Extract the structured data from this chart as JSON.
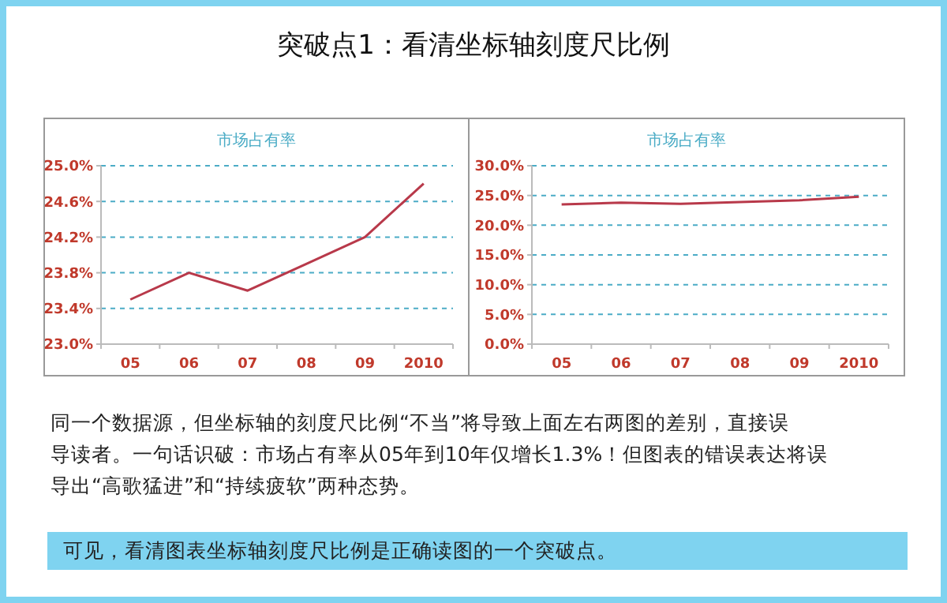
{
  "chart_data": [
    {
      "type": "line",
      "title": "市场占有率",
      "categories": [
        "05",
        "06",
        "07",
        "08",
        "09",
        "2010"
      ],
      "series": [
        {
          "color": "#b8394a",
          "values": [
            23.5,
            23.8,
            23.6,
            23.9,
            24.2,
            24.8
          ]
        }
      ],
      "ylim": [
        23.0,
        25.0
      ],
      "yticks": [
        {
          "value": 23.0,
          "label": "23.0%"
        },
        {
          "value": 23.4,
          "label": "23.4%"
        },
        {
          "value": 23.8,
          "label": "23.8%"
        },
        {
          "value": 24.2,
          "label": "24.2%"
        },
        {
          "value": 24.6,
          "label": "24.6%"
        },
        {
          "value": 25.0,
          "label": "25.0%"
        }
      ],
      "grid": "y"
    },
    {
      "type": "line",
      "title": "市场占有率",
      "categories": [
        "05",
        "06",
        "07",
        "08",
        "09",
        "2010"
      ],
      "series": [
        {
          "color": "#b8394a",
          "values": [
            23.5,
            23.8,
            23.6,
            23.9,
            24.2,
            24.8
          ]
        }
      ],
      "ylim": [
        0,
        30
      ],
      "yticks": [
        {
          "value": 0,
          "label": "0.0%"
        },
        {
          "value": 5,
          "label": "5.0%"
        },
        {
          "value": 10,
          "label": "10.0%"
        },
        {
          "value": 15,
          "label": "15.0%"
        },
        {
          "value": 20,
          "label": "20.0%"
        },
        {
          "value": 25,
          "label": "25.0%"
        },
        {
          "value": 30,
          "label": "30.0%"
        }
      ],
      "grid": "y"
    },
    {
      "type": "other",
      "title": "突破点1：看清坐标轴刻度尺比例",
      "annotations": [
        "同一个数据源，但坐标轴的刻度尺比例“不当”将导致上面左右两图的差别，直接误",
        "导读者。一句话识破：市场占有率从05年到10年仅增长1.3%！但图表的错误表达将误",
        "导出“高歌猛进”和“持续疲软”两种态势。",
        "可见，看清图表坐标轴刻度尺比例是正确读图的一个突破点。"
      ]
    }
  ]
}
